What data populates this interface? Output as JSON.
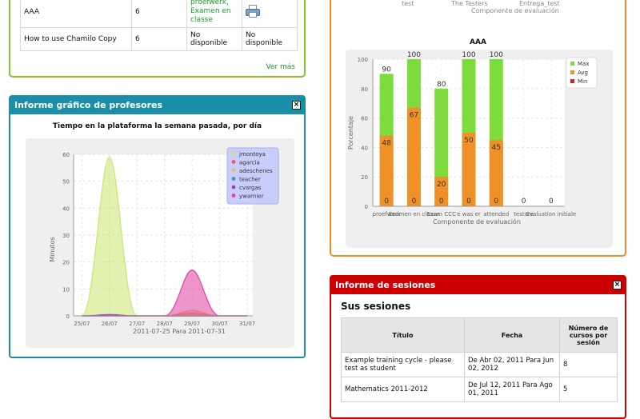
{
  "courses_widget": {
    "rows": [
      {
        "name": "AAA",
        "count": "6",
        "link_lines": [
          "proefwerk,",
          "Examen en",
          "classe"
        ],
        "has_print_icon": true
      },
      {
        "name": "How to use Chamilo Copy",
        "count": "6",
        "col3": "No disponible",
        "col4": "No disponible"
      }
    ],
    "more_link": "Ver más"
  },
  "teachers_widget": {
    "title": "Informe gráfico de profesores",
    "chart_data": {
      "type": "area",
      "title": "Tiempo en la plataforma la semana pasada, por día",
      "xlabel": "2011-07-25 Para 2011-07-31",
      "ylabel": "Minutos",
      "categories": [
        "25/07",
        "26/07",
        "27/07",
        "28/07",
        "29/07",
        "30/07",
        "31/07"
      ],
      "ylim": [
        0,
        60
      ],
      "yticks": [
        0,
        10,
        20,
        30,
        40,
        50,
        60
      ],
      "legend_position": "top-right",
      "series": [
        {
          "name": "jmontoya",
          "color": "#c8e66e",
          "values": [
            0,
            59,
            0,
            0,
            0,
            0,
            0
          ]
        },
        {
          "name": "agarcia",
          "color": "#e06060",
          "values": [
            0,
            0,
            0,
            0,
            1,
            0,
            0
          ]
        },
        {
          "name": "adeschenes",
          "color": "#e0c060",
          "values": [
            0,
            0,
            0,
            0,
            2,
            0,
            0
          ]
        },
        {
          "name": "teacher",
          "color": "#4a8ad0",
          "values": [
            0,
            0,
            0,
            0,
            0,
            0,
            0
          ]
        },
        {
          "name": "cvargas",
          "color": "#9a40c0",
          "values": [
            0,
            0.5,
            0,
            0,
            0,
            0,
            0
          ]
        },
        {
          "name": "ywarnier",
          "color": "#e040a0",
          "values": [
            0,
            0,
            0,
            0,
            17,
            0,
            0
          ]
        }
      ]
    }
  },
  "evaluation_widget": {
    "top_labels": [
      "test",
      "The Testers",
      "Componente de evaluación",
      "Entrega_test"
    ],
    "chart_data": {
      "type": "bar",
      "title": "AAA",
      "xlabel": "Componente de evaluación",
      "ylabel": "Porcentaje",
      "ylim": [
        0,
        100
      ],
      "yticks": [
        0,
        20,
        40,
        60,
        80,
        100
      ],
      "categories": [
        "proefwerk",
        "Examen en classe",
        "Exam CCC",
        "e was er",
        "attended",
        "testore",
        "Evaluation initiale"
      ],
      "legend_position": "top-right",
      "series": [
        {
          "name": "Max",
          "color": "#7ddb3c",
          "values": [
            90,
            100,
            80,
            100,
            100,
            0,
            0
          ]
        },
        {
          "name": "Avg",
          "color": "#f09028",
          "values": [
            48,
            67,
            20,
            50,
            45,
            0,
            0
          ]
        },
        {
          "name": "Min",
          "color": "#e02020",
          "values": [
            0,
            0,
            0,
            0,
            0,
            0,
            0
          ]
        }
      ]
    }
  },
  "sessions_widget": {
    "title": "Informe de sesiones",
    "subtitle": "Sus sesiones",
    "columns": [
      "Título",
      "Fecha",
      "Número de cursos por sesión"
    ],
    "rows": [
      {
        "title": "Example training cycle - please test as student",
        "date": "De Abr 02, 2011 Para Jun 02, 2012",
        "courses": "8"
      },
      {
        "title": "Mathematics 2011-2012",
        "date": "De Jul 12, 2011 Para Ago 01, 2011",
        "courses": "5"
      }
    ]
  }
}
